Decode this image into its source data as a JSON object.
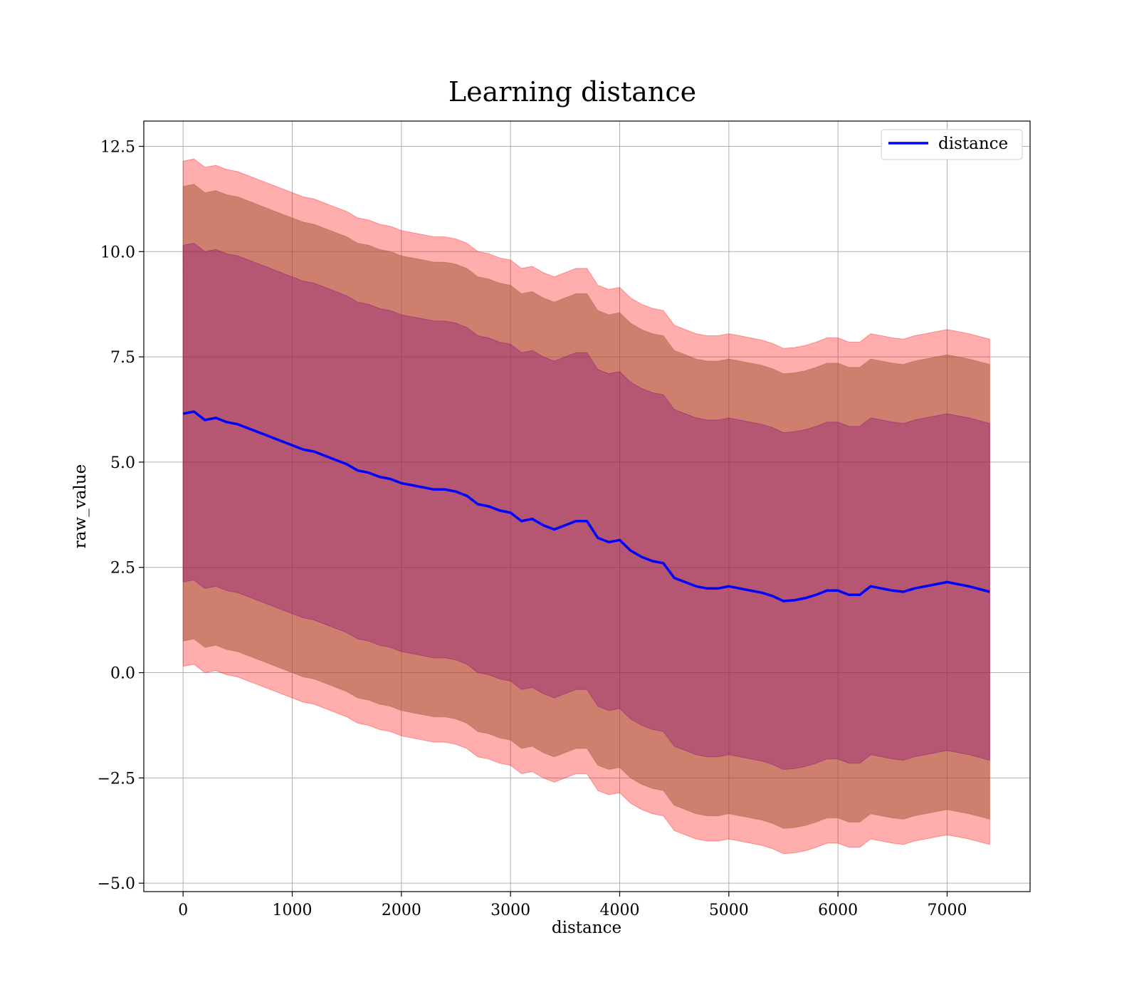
{
  "chart_data": {
    "type": "line",
    "title": "Learning distance",
    "xlabel": "distance",
    "ylabel": "raw_value",
    "xlim": [
      -360,
      7760
    ],
    "ylim": [
      -5.2,
      13.1
    ],
    "xticks": [
      0,
      1000,
      2000,
      3000,
      4000,
      5000,
      6000,
      7000
    ],
    "xtick_labels": [
      "0",
      "1000",
      "2000",
      "3000",
      "4000",
      "5000",
      "6000",
      "7000"
    ],
    "yticks": [
      -5.0,
      -2.5,
      0.0,
      2.5,
      5.0,
      7.5,
      10.0,
      12.5
    ],
    "ytick_labels": [
      "−5.0",
      "−2.5",
      "0.0",
      "2.5",
      "5.0",
      "7.5",
      "10.0",
      "12.5"
    ],
    "grid": true,
    "legend_position": "top-right",
    "legend": [
      "distance"
    ],
    "series": [
      {
        "name": "distance",
        "color": "#0000ff",
        "x": [
          0,
          100,
          200,
          300,
          400,
          500,
          600,
          700,
          800,
          900,
          1000,
          1100,
          1200,
          1300,
          1400,
          1500,
          1600,
          1700,
          1800,
          1900,
          2000,
          2100,
          2200,
          2300,
          2400,
          2500,
          2600,
          2700,
          2800,
          2900,
          3000,
          3100,
          3200,
          3300,
          3400,
          3500,
          3600,
          3700,
          3800,
          3900,
          4000,
          4100,
          4200,
          4300,
          4400,
          4500,
          4600,
          4700,
          4800,
          4900,
          5000,
          5100,
          5200,
          5300,
          5400,
          5500,
          5600,
          5700,
          5800,
          5900,
          6000,
          6100,
          6200,
          6300,
          6400,
          6500,
          6600,
          6700,
          6800,
          6900,
          7000,
          7100,
          7200,
          7390
        ],
        "y": [
          6.15,
          6.2,
          6.0,
          6.05,
          5.95,
          5.9,
          5.8,
          5.7,
          5.6,
          5.5,
          5.4,
          5.3,
          5.25,
          5.15,
          5.05,
          4.95,
          4.8,
          4.75,
          4.65,
          4.6,
          4.5,
          4.45,
          4.4,
          4.35,
          4.35,
          4.3,
          4.2,
          4.0,
          3.95,
          3.85,
          3.8,
          3.6,
          3.65,
          3.5,
          3.4,
          3.5,
          3.6,
          3.6,
          3.2,
          3.1,
          3.15,
          2.9,
          2.75,
          2.65,
          2.6,
          2.25,
          2.15,
          2.05,
          2.0,
          2.0,
          2.05,
          2.0,
          1.95,
          1.9,
          1.82,
          1.7,
          1.72,
          1.77,
          1.85,
          1.95,
          1.95,
          1.85,
          1.85,
          2.05,
          2.0,
          1.95,
          1.92,
          2.0,
          2.05,
          2.1,
          2.15,
          2.1,
          2.05,
          1.92
        ],
        "half_widths": [
          6.0,
          6.0,
          6.0,
          6.0,
          6.0,
          6.0,
          6.0,
          6.0,
          6.0,
          6.0,
          6.0,
          6.0,
          6.0,
          6.0,
          6.0,
          6.0,
          6.0,
          6.0,
          6.0,
          6.0,
          6.0,
          6.0,
          6.0,
          6.0,
          6.0,
          6.0,
          6.0,
          6.0,
          6.0,
          6.0,
          6.0,
          6.0,
          6.0,
          6.0,
          6.0,
          6.0,
          6.0,
          6.0,
          6.0,
          6.0,
          6.0,
          6.0,
          6.0,
          6.0,
          6.0,
          6.0,
          6.0,
          6.0,
          6.0,
          6.0,
          6.0,
          6.0,
          6.0,
          6.0,
          6.0,
          6.0,
          6.0,
          6.0,
          6.0,
          6.0,
          6.0,
          6.0,
          6.0,
          6.0,
          6.0,
          6.0,
          6.0,
          6.0,
          6.0,
          6.0,
          6.0,
          6.0,
          6.0,
          6.0
        ]
      }
    ],
    "bands": [
      {
        "half_width": 6.0,
        "color": "#ff0000",
        "opacity": 0.32
      },
      {
        "half_width": 5.4,
        "color": "#a0522d",
        "opacity": 0.5
      },
      {
        "half_width": 4.0,
        "color": "#800080",
        "opacity": 0.32
      }
    ]
  }
}
